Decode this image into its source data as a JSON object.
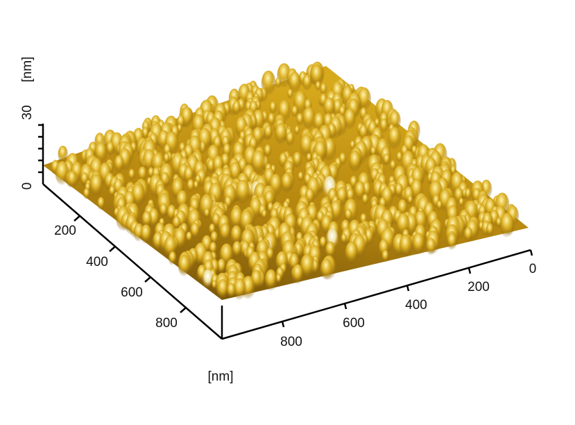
{
  "z_axis": {
    "unit": "[nm]",
    "ticks": [
      "0",
      "30"
    ]
  },
  "left_axis": {
    "ticks": [
      "200",
      "400",
      "600",
      "800"
    ]
  },
  "right_axis": {
    "ticks": [
      "0",
      "200",
      "400",
      "600",
      "800"
    ]
  },
  "unit_label": "[nm]"
}
